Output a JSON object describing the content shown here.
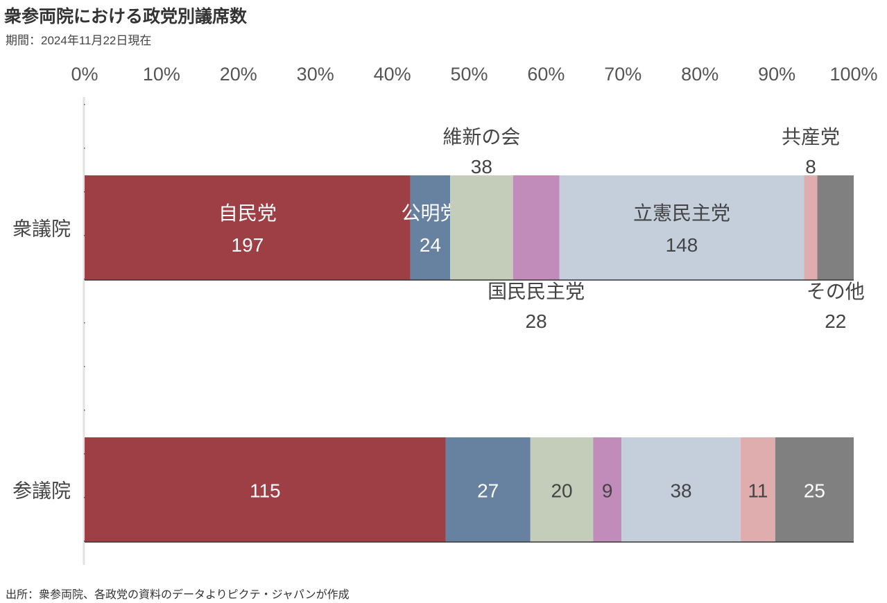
{
  "chart_data": {
    "type": "bar",
    "orientation": "horizontal",
    "stacked": "percent",
    "title": "衆参両院における政党別議席数",
    "subtitle": "期間：2024年11月22日現在",
    "source": "出所：衆参両院、各政党の資料のデータよりピクテ・ジャパンが作成",
    "xlim": [
      0,
      100
    ],
    "x_ticks": [
      "0%",
      "10%",
      "20%",
      "30%",
      "40%",
      "50%",
      "60%",
      "70%",
      "80%",
      "90%",
      "100%"
    ],
    "grid": false,
    "categories": [
      "衆議院",
      "参議院"
    ],
    "series": [
      {
        "name": "自民党",
        "color": "#9e3f45",
        "values": [
          197,
          115
        ]
      },
      {
        "name": "公明党",
        "color": "#6781a1",
        "values": [
          24,
          27
        ]
      },
      {
        "name": "維新の会",
        "color": "#c3cdb9",
        "values": [
          38,
          20
        ]
      },
      {
        "name": "国民民主党",
        "color": "#c28cba",
        "values": [
          28,
          9
        ]
      },
      {
        "name": "立憲民主党",
        "color": "#c5cfdc",
        "values": [
          148,
          38
        ]
      },
      {
        "name": "共産党",
        "color": "#dfadae",
        "values": [
          8,
          11
        ]
      },
      {
        "name": "その他",
        "color": "#808080",
        "values": [
          22,
          25
        ]
      }
    ],
    "label_placement_first_bar": [
      "inside",
      "inside",
      "above",
      "below",
      "inside",
      "above",
      "below"
    ],
    "label_text_dark": [
      false,
      false,
      true,
      true,
      true,
      true,
      false
    ]
  }
}
